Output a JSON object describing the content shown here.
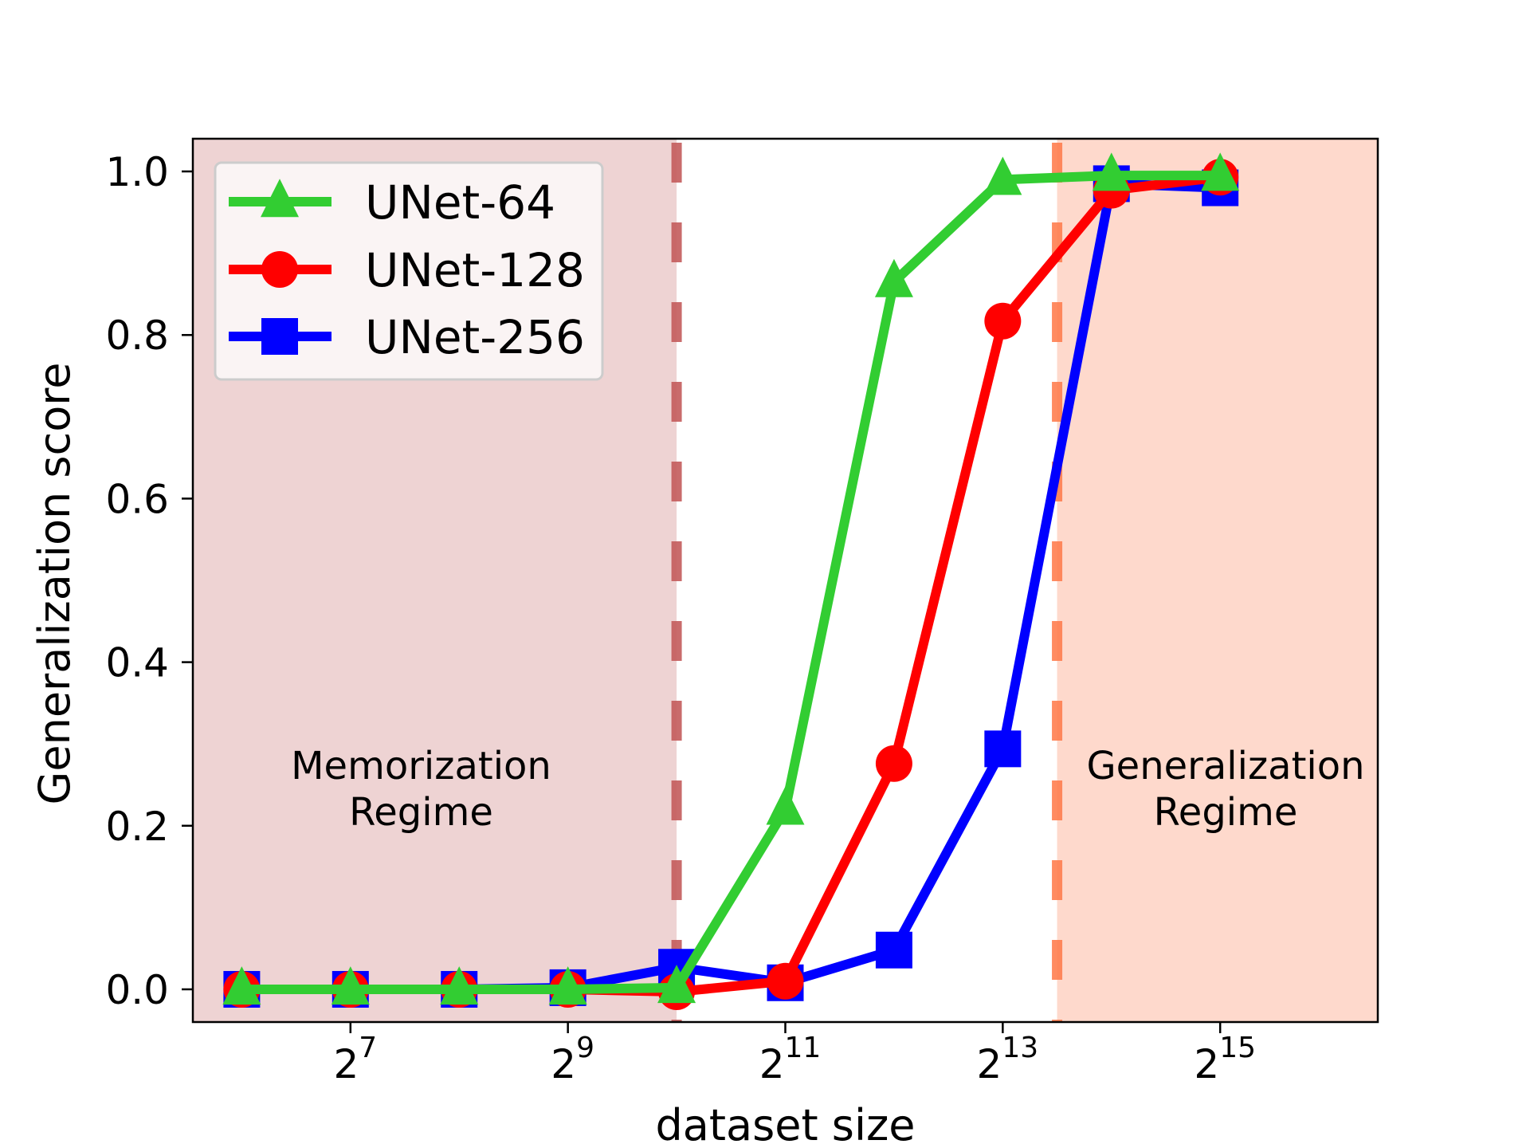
{
  "chart_data": {
    "type": "line",
    "title": "",
    "xlabel": "dataset size",
    "ylabel": "Generalization score",
    "xscale": "log2",
    "x_exponents": [
      6,
      7,
      8,
      9,
      10,
      11,
      12,
      13,
      14,
      15
    ],
    "x": [
      64,
      128,
      256,
      512,
      1024,
      2048,
      4096,
      8192,
      16384,
      32768
    ],
    "x_tick_exponents": [
      7,
      9,
      11,
      13,
      15
    ],
    "x_tick_labels": [
      "2^7",
      "2^9",
      "2^11",
      "2^13",
      "2^15"
    ],
    "xlim_exponent": [
      5.55,
      16.45
    ],
    "ylim": [
      -0.04,
      1.04
    ],
    "y_ticks": [
      0.0,
      0.2,
      0.4,
      0.6,
      0.8,
      1.0
    ],
    "y_tick_labels": [
      "0.0",
      "0.2",
      "0.4",
      "0.6",
      "0.8",
      "1.0"
    ],
    "grid": false,
    "legend_position": "upper left",
    "series": [
      {
        "name": "UNet-64",
        "color": "#32cd32",
        "marker": "triangle",
        "values": [
          0.0,
          0.0,
          0.0,
          0.0,
          0.002,
          0.22,
          0.865,
          0.99,
          0.995,
          0.995
        ]
      },
      {
        "name": "UNet-128",
        "color": "#ff0000",
        "marker": "circle",
        "values": [
          0.0,
          0.0,
          0.0,
          0.0,
          -0.003,
          0.01,
          0.276,
          0.817,
          0.977,
          0.993
        ]
      },
      {
        "name": "UNet-256",
        "color": "#0000ff",
        "marker": "square",
        "values": [
          0.0,
          0.0,
          0.0,
          0.002,
          0.027,
          0.008,
          0.048,
          0.294,
          0.985,
          0.98
        ]
      }
    ],
    "regions": [
      {
        "label_lines": [
          "Memorization",
          "Regime"
        ],
        "from_exponent": 5.55,
        "to_exponent": 10,
        "color": "#eed3d3",
        "boundary_color": "#c45c5c",
        "label_center_exponent": 7.65
      },
      {
        "label_lines": [
          "Generalization",
          "Regime"
        ],
        "from_exponent": 13.5,
        "to_exponent": 16.45,
        "color": "#fed9cc",
        "boundary_color": "#ff7f50",
        "label_center_exponent": 15.05
      }
    ],
    "annotations": [
      "Memorization Regime",
      "Generalization Regime"
    ]
  }
}
